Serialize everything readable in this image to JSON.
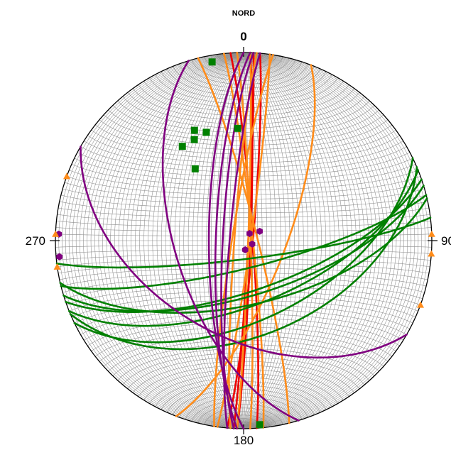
{
  "chart_data": {
    "type": "scatter",
    "projection": "stereonet",
    "title": "NORD",
    "azimuth_labels": {
      "north": "0",
      "east": "90",
      "south": "180",
      "west": "270"
    },
    "net_grid": true,
    "colors": {
      "grid": "#8c8c8c",
      "primitive": "#000000",
      "red_planes": "#ee0000",
      "orange_planes": "#ff8c1a",
      "green_planes": "#008000",
      "purple_planes": "#800080",
      "green_points": "#008000",
      "purple_points": "#800080",
      "orange_markers": "#ff8c1a"
    },
    "series": [
      {
        "group": "red",
        "planes": [
          {
            "strike": 5,
            "dip": 86
          },
          {
            "strike": 3,
            "dip": 88
          },
          {
            "strike": 356,
            "dip": 86
          },
          {
            "strike": 2,
            "dip": 87
          }
        ]
      },
      {
        "group": "orange",
        "planes": [
          {
            "strike": 21,
            "dip": 72
          },
          {
            "strike": 2,
            "dip": 88
          },
          {
            "strike": 184,
            "dip": 86
          },
          {
            "strike": 189,
            "dip": 85
          },
          {
            "strike": 358,
            "dip": 87
          },
          {
            "strike": 346,
            "dip": 84
          },
          {
            "strike": 354,
            "dip": 86
          },
          {
            "strike": 8,
            "dip": 87
          }
        ]
      },
      {
        "group": "green",
        "planes": [
          {
            "strike": 64,
            "dip": 55
          },
          {
            "strike": 68,
            "dip": 62
          },
          {
            "strike": 76,
            "dip": 78
          },
          {
            "strike": 83,
            "dip": 82
          },
          {
            "strike": 71,
            "dip": 68
          },
          {
            "strike": 73,
            "dip": 66
          },
          {
            "strike": 67,
            "dip": 48
          },
          {
            "strike": 77,
            "dip": 62
          }
        ]
      },
      {
        "group": "purple",
        "planes": [
          {
            "strike": 163,
            "dip": 60
          },
          {
            "strike": 180,
            "dip": 75
          },
          {
            "strike": 182,
            "dip": 78
          },
          {
            "strike": 183,
            "dip": 81
          },
          {
            "strike": 185,
            "dip": 84
          },
          {
            "strike": 120,
            "dip": 48
          }
        ]
      },
      {
        "group": "green",
        "poles": [
          {
            "trend": 350,
            "plunge": 4
          },
          {
            "trend": 336,
            "plunge": 36
          },
          {
            "trend": 341,
            "plunge": 39
          },
          {
            "trend": 357,
            "plunge": 40
          },
          {
            "trend": 334,
            "plunge": 40
          },
          {
            "trend": 327,
            "plunge": 40
          },
          {
            "trend": 326,
            "plunge": 52
          },
          {
            "trend": 175,
            "plunge": 2
          }
        ]
      },
      {
        "group": "purple",
        "poles": [
          {
            "trend": 60,
            "plunge": 82
          },
          {
            "trend": 40,
            "plunge": 86
          },
          {
            "trend": 112,
            "plunge": 86
          },
          {
            "trend": 170,
            "plunge": 86
          },
          {
            "trend": 272,
            "plunge": 2
          },
          {
            "trend": 265,
            "plunge": 2
          }
        ]
      },
      {
        "group": "orange",
        "markers": [
          {
            "trend": 290,
            "plunge": 0
          },
          {
            "trend": 272,
            "plunge": 0
          },
          {
            "trend": 262,
            "plunge": 0
          },
          {
            "trend": 88,
            "plunge": 0
          },
          {
            "trend": 94,
            "plunge": 0
          },
          {
            "trend": 110,
            "plunge": 0
          }
        ]
      }
    ]
  }
}
